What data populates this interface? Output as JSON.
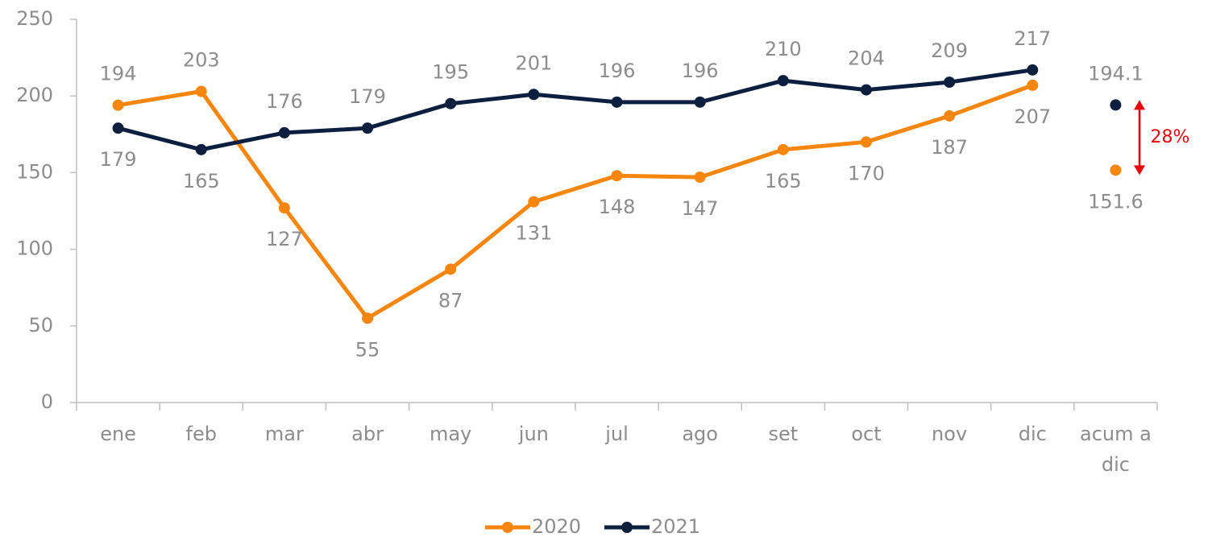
{
  "chart_data": {
    "type": "line",
    "categories": [
      "ene",
      "feb",
      "mar",
      "abr",
      "may",
      "jun",
      "jul",
      "ago",
      "set",
      "oct",
      "nov",
      "dic",
      "acum a dic"
    ],
    "series": [
      {
        "name": "2020",
        "color": "#f7860f",
        "values": [
          194,
          203,
          127,
          55,
          87,
          131,
          148,
          147,
          165,
          170,
          187,
          207,
          151.6
        ]
      },
      {
        "name": "2021",
        "color": "#0c1f3f",
        "values": [
          179,
          165,
          176,
          179,
          195,
          201,
          196,
          196,
          210,
          204,
          209,
          217,
          194.1
        ]
      }
    ],
    "ylim": [
      0,
      250
    ],
    "yticks": [
      0,
      50,
      100,
      150,
      200,
      250
    ],
    "annotation": "28%",
    "annotation_color": "#e8000b",
    "legend": "bottom"
  }
}
